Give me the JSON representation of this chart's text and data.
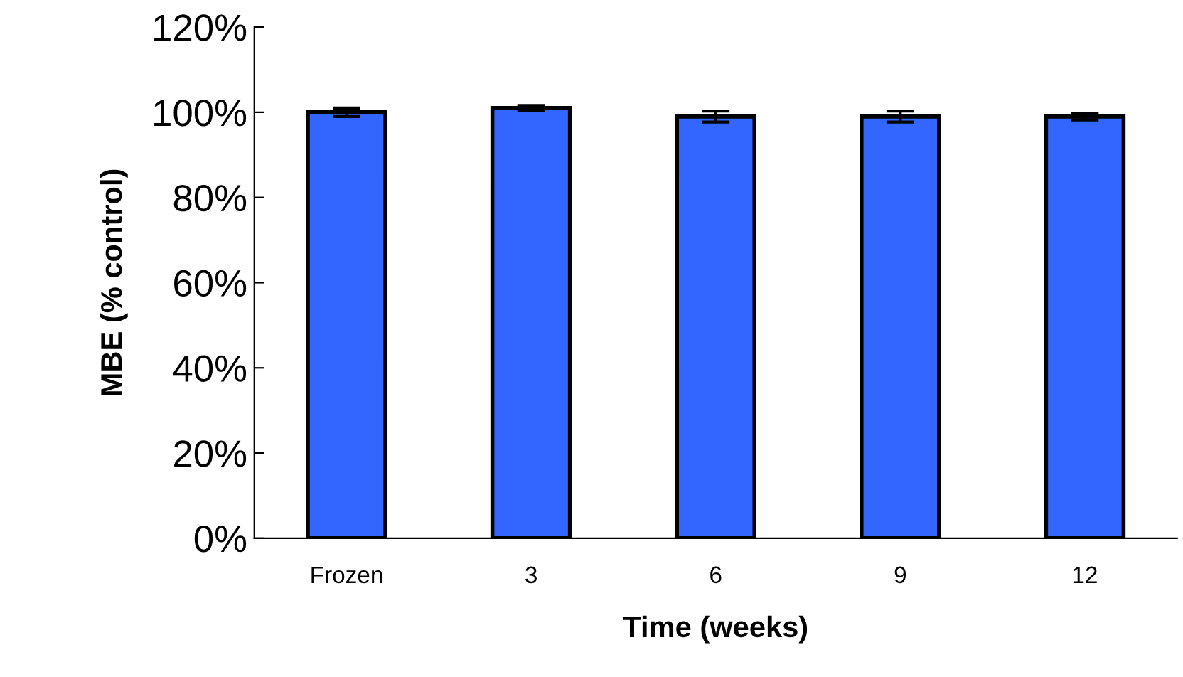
{
  "chart_data": {
    "type": "bar",
    "xlabel": "Time (weeks)",
    "ylabel": "MBE (% control)",
    "categories": [
      "Frozen",
      "3",
      "6",
      "9",
      "12"
    ],
    "values": [
      100,
      101,
      99,
      99,
      99
    ],
    "errors": [
      1,
      0.6,
      1.3,
      1.3,
      0.8
    ],
    "color": "#3366ff",
    "ylim": [
      0,
      120
    ],
    "yticks": [
      {
        "value": 0,
        "label": "0%"
      },
      {
        "value": 20,
        "label": "20%"
      },
      {
        "value": 40,
        "label": "40%"
      },
      {
        "value": 60,
        "label": "60%"
      },
      {
        "value": 80,
        "label": "80%"
      },
      {
        "value": 100,
        "label": "100%"
      },
      {
        "value": 120,
        "label": "120%"
      }
    ],
    "grid": false,
    "legend": false
  }
}
